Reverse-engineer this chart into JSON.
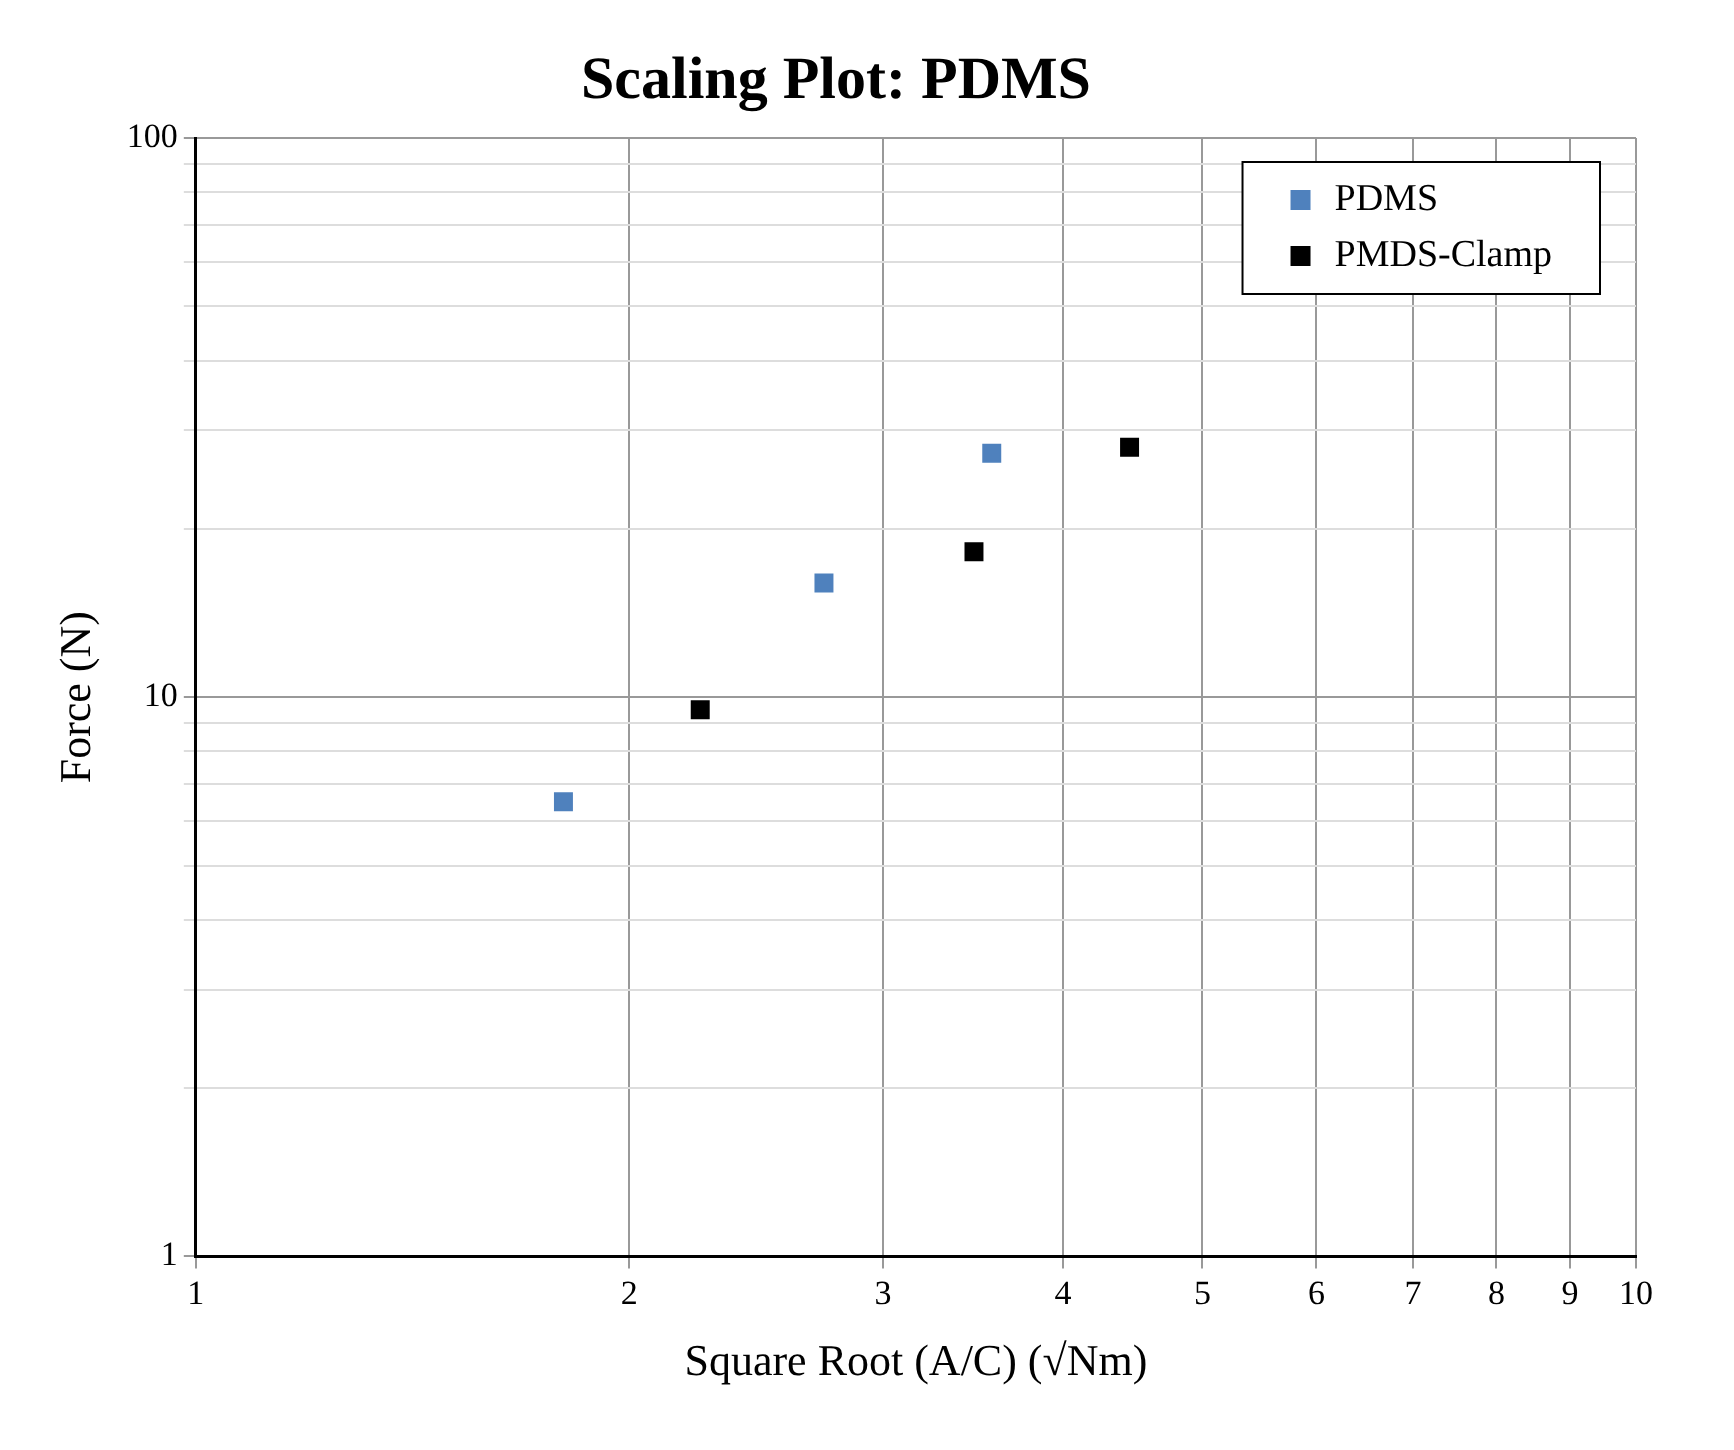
{
  "chart_data": {
    "type": "scatter",
    "title": "Scaling Plot: PDMS",
    "xlabel": "Square Root (A/C) (√Nm)",
    "ylabel": "Force (N)",
    "log": "xy",
    "grid": true,
    "legend": "top right",
    "marker": "square",
    "xlim": [
      1,
      10
    ],
    "xticks": [
      1,
      2,
      3,
      4,
      5,
      6,
      7,
      8,
      9,
      10
    ],
    "ylim": [
      1,
      100
    ],
    "yticks": [
      1,
      {
        "value": 2,
        "label": null
      },
      {
        "value": 3,
        "label": null
      },
      {
        "value": 4,
        "label": null
      },
      {
        "value": 5,
        "label": null
      },
      {
        "value": 6,
        "label": null
      },
      {
        "value": 7,
        "label": null
      },
      {
        "value": 8,
        "label": null
      },
      {
        "value": 9,
        "label": null
      },
      10,
      {
        "value": 20,
        "label": null
      },
      {
        "value": 30,
        "label": null
      },
      {
        "value": 40,
        "label": null
      },
      {
        "value": 50,
        "label": null
      },
      {
        "value": 60,
        "label": null
      },
      {
        "value": 70,
        "label": null
      },
      {
        "value": 80,
        "label": null
      },
      {
        "value": 90,
        "label": null
      },
      100
    ],
    "series": [
      {
        "name": "PDMS",
        "color": "#4f81bd",
        "x": [
          1.8,
          2.73,
          3.57
        ],
        "values": [
          6.5,
          16.0,
          27.3
        ]
      },
      {
        "name": "PMDS-Clamp",
        "color": "#000000",
        "x": [
          2.24,
          3.47,
          4.45
        ],
        "values": [
          9.5,
          18.2,
          28.0
        ]
      }
    ]
  }
}
